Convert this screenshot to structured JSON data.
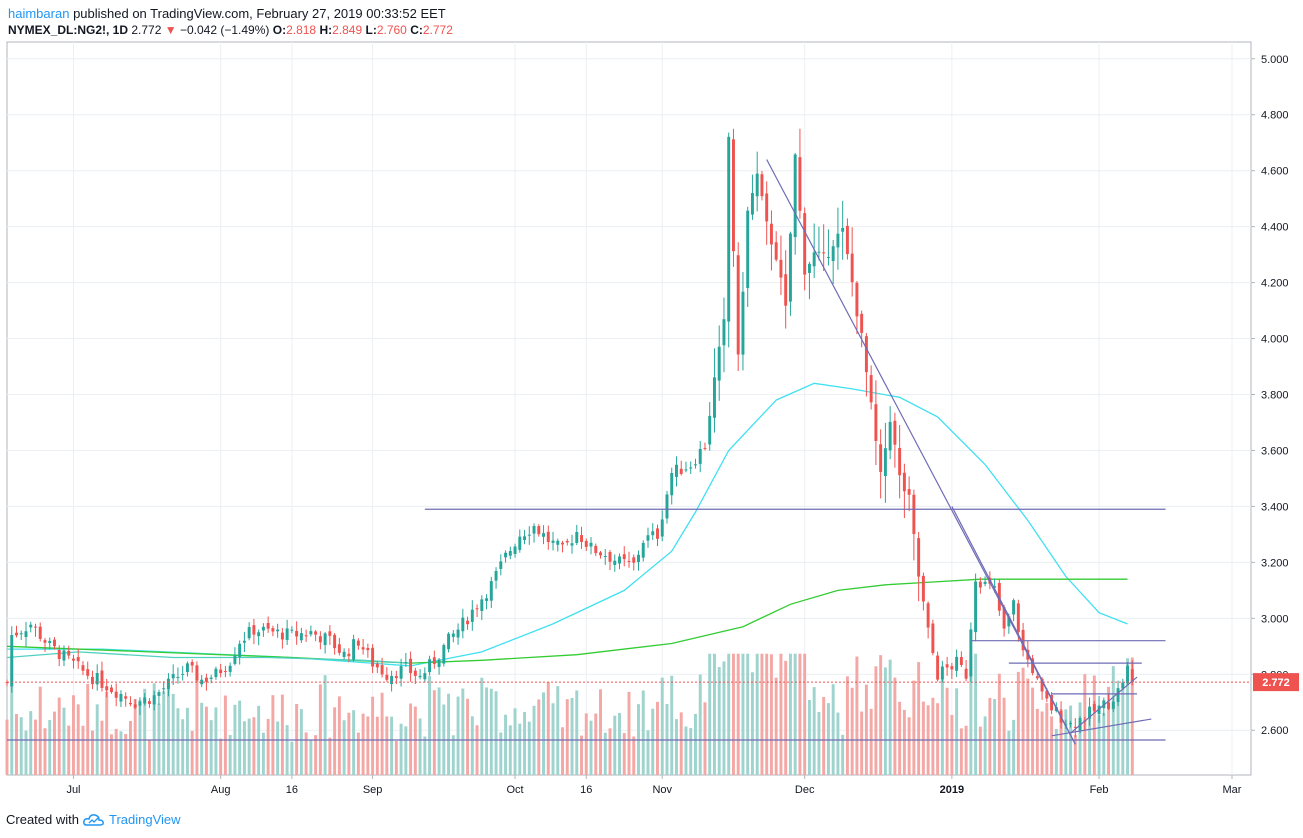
{
  "header": {
    "author": "haimbaran",
    "published_text": "published on TradingView.com, February 27, 2019 00:33:52 EET",
    "symbol": "NYMEX_DL:NG2!, 1D",
    "last": "2.772",
    "change": "−0.042 (−1.49%)",
    "open_label": "O:",
    "open": "2.818",
    "high_label": "H:",
    "high": "2.849",
    "low_label": "L:",
    "low": "2.760",
    "close_label": "C:",
    "close": "2.772"
  },
  "footer": {
    "created_with": "Created with",
    "brand": "TradingView"
  },
  "colors": {
    "up": "#26a69a",
    "down": "#ef5350",
    "vol_up": "#9fd4ce",
    "vol_down": "#f4a8a6",
    "ma_fast": "#40e0f0",
    "ma_slow": "#33cc33",
    "ma_old": "#50d0c0",
    "trendline": "#6f6bb5",
    "grid": "#eceff3"
  },
  "chart_data": {
    "type": "candlestick",
    "symbol": "NYMEX_DL:NG2!",
    "interval": "1D",
    "y_axis": {
      "ticks": [
        "5.000",
        "4.800",
        "4.600",
        "4.400",
        "4.200",
        "4.000",
        "3.800",
        "3.600",
        "3.400",
        "3.200",
        "3.000",
        "2.800",
        "2.600"
      ],
      "range": [
        2.44,
        5.06
      ],
      "last_price": "2.772"
    },
    "x_axis": {
      "ticks": [
        {
          "label": "Jul",
          "d": 14,
          "bold": false
        },
        {
          "label": "Aug",
          "d": 45,
          "bold": false
        },
        {
          "label": "16",
          "d": 60,
          "bold": false
        },
        {
          "label": "Sep",
          "d": 77,
          "bold": false
        },
        {
          "label": "Oct",
          "d": 107,
          "bold": false
        },
        {
          "label": "16",
          "d": 122,
          "bold": false
        },
        {
          "label": "Nov",
          "d": 138,
          "bold": false
        },
        {
          "label": "Dec",
          "d": 168,
          "bold": false
        },
        {
          "label": "2019",
          "d": 199,
          "bold": true
        },
        {
          "label": "Feb",
          "d": 230,
          "bold": false
        },
        {
          "label": "Mar",
          "d": 258,
          "bold": false
        }
      ]
    },
    "candle_anchors": [
      [
        1,
        2.94
      ],
      [
        5,
        2.98
      ],
      [
        9,
        2.9
      ],
      [
        13,
        2.85
      ],
      [
        16,
        2.81
      ],
      [
        19,
        2.78
      ],
      [
        23,
        2.74
      ],
      [
        27,
        2.7
      ],
      [
        31,
        2.72
      ],
      [
        35,
        2.78
      ],
      [
        38,
        2.82
      ],
      [
        41,
        2.78
      ],
      [
        44,
        2.8
      ],
      [
        47,
        2.85
      ],
      [
        49,
        2.92
      ],
      [
        52,
        2.96
      ],
      [
        56,
        2.95
      ],
      [
        60,
        2.94
      ],
      [
        64,
        2.95
      ],
      [
        68,
        2.92
      ],
      [
        71,
        2.87
      ],
      [
        74,
        2.92
      ],
      [
        77,
        2.84
      ],
      [
        80,
        2.8
      ],
      [
        84,
        2.82
      ],
      [
        87,
        2.79
      ],
      [
        90,
        2.85
      ],
      [
        93,
        2.92
      ],
      [
        96,
        2.98
      ],
      [
        99,
        3.05
      ],
      [
        102,
        3.12
      ],
      [
        105,
        3.22
      ],
      [
        108,
        3.3
      ],
      [
        111,
        3.33
      ],
      [
        114,
        3.28
      ],
      [
        117,
        3.24
      ],
      [
        120,
        3.31
      ],
      [
        123,
        3.25
      ],
      [
        126,
        3.23
      ],
      [
        129,
        3.2
      ],
      [
        132,
        3.19
      ],
      [
        134,
        3.28
      ],
      [
        137,
        3.3
      ],
      [
        140,
        3.52
      ],
      [
        144,
        3.55
      ],
      [
        147,
        3.62
      ],
      [
        149,
        3.85
      ],
      [
        151,
        4.05
      ],
      [
        152,
        4.72
      ],
      [
        154,
        3.92
      ],
      [
        156,
        4.45
      ],
      [
        158,
        4.58
      ],
      [
        160,
        4.4
      ],
      [
        162,
        4.3
      ],
      [
        164,
        4.1
      ],
      [
        166,
        4.65
      ],
      [
        168,
        4.25
      ],
      [
        170,
        4.3
      ],
      [
        172,
        4.28
      ],
      [
        174,
        4.35
      ],
      [
        176,
        4.38
      ],
      [
        178,
        4.2
      ],
      [
        180,
        4.0
      ],
      [
        182,
        3.75
      ],
      [
        184,
        3.5
      ],
      [
        186,
        3.72
      ],
      [
        188,
        3.5
      ],
      [
        190,
        3.42
      ],
      [
        192,
        3.15
      ],
      [
        194,
        2.95
      ],
      [
        196,
        2.8
      ],
      [
        198,
        2.82
      ],
      [
        200,
        2.84
      ],
      [
        202,
        2.8
      ],
      [
        204,
        3.15
      ],
      [
        206,
        3.12
      ],
      [
        208,
        3.1
      ],
      [
        210,
        2.95
      ],
      [
        212,
        3.05
      ],
      [
        214,
        2.88
      ],
      [
        216,
        2.82
      ],
      [
        218,
        2.72
      ],
      [
        220,
        2.68
      ],
      [
        222,
        2.65
      ],
      [
        224,
        2.62
      ],
      [
        226,
        2.64
      ],
      [
        228,
        2.66
      ],
      [
        230,
        2.68
      ],
      [
        232,
        2.7
      ],
      [
        234,
        2.74
      ],
      [
        236,
        2.82
      ],
      [
        237,
        2.77
      ]
    ],
    "moving_averages": [
      {
        "name": "fast",
        "points": [
          [
            0,
            2.89
          ],
          [
            20,
            2.89
          ],
          [
            60,
            2.86
          ],
          [
            85,
            2.83
          ],
          [
            100,
            2.88
          ],
          [
            115,
            2.98
          ],
          [
            130,
            3.1
          ],
          [
            140,
            3.24
          ],
          [
            145,
            3.38
          ],
          [
            152,
            3.6
          ],
          [
            162,
            3.78
          ],
          [
            170,
            3.84
          ],
          [
            178,
            3.82
          ],
          [
            188,
            3.79
          ],
          [
            196,
            3.72
          ],
          [
            206,
            3.55
          ],
          [
            215,
            3.35
          ],
          [
            223,
            3.15
          ],
          [
            230,
            3.02
          ],
          [
            236,
            2.98
          ]
        ]
      },
      {
        "name": "slow",
        "points": [
          [
            0,
            2.9
          ],
          [
            30,
            2.88
          ],
          [
            60,
            2.86
          ],
          [
            85,
            2.84
          ],
          [
            100,
            2.85
          ],
          [
            120,
            2.87
          ],
          [
            140,
            2.91
          ],
          [
            155,
            2.97
          ],
          [
            165,
            3.05
          ],
          [
            175,
            3.1
          ],
          [
            185,
            3.12
          ],
          [
            195,
            3.13
          ],
          [
            205,
            3.14
          ],
          [
            215,
            3.14
          ],
          [
            225,
            3.14
          ],
          [
            236,
            3.14
          ]
        ]
      },
      {
        "name": "old",
        "points": [
          [
            0,
            2.86
          ],
          [
            15,
            2.88
          ],
          [
            35,
            2.86
          ],
          [
            55,
            2.86
          ],
          [
            75,
            2.85
          ],
          [
            85,
            2.84
          ]
        ]
      }
    ],
    "drawings": [
      {
        "name": "resistance-3400",
        "from": [
          88,
          3.39
        ],
        "to": [
          244,
          3.39
        ]
      },
      {
        "name": "support-2570",
        "from": [
          0,
          2.565
        ],
        "to": [
          244,
          2.565
        ]
      },
      {
        "name": "downtrend",
        "from": [
          160,
          4.64
        ],
        "to": [
          225,
          2.55
        ]
      },
      {
        "name": "downtrend-2",
        "from": [
          199,
          3.4
        ],
        "to": [
          225,
          2.55
        ]
      },
      {
        "name": "level-2920",
        "from": [
          203,
          2.92
        ],
        "to": [
          244,
          2.92
        ]
      },
      {
        "name": "level-2840",
        "from": [
          211,
          2.84
        ],
        "to": [
          239,
          2.84
        ]
      },
      {
        "name": "level-2730",
        "from": [
          220,
          2.73
        ],
        "to": [
          238,
          2.73
        ]
      },
      {
        "name": "uptrend-1",
        "from": [
          220,
          2.58
        ],
        "to": [
          241,
          2.64
        ]
      },
      {
        "name": "uptrend-2",
        "from": [
          224,
          2.59
        ],
        "to": [
          238,
          2.79
        ]
      }
    ]
  }
}
